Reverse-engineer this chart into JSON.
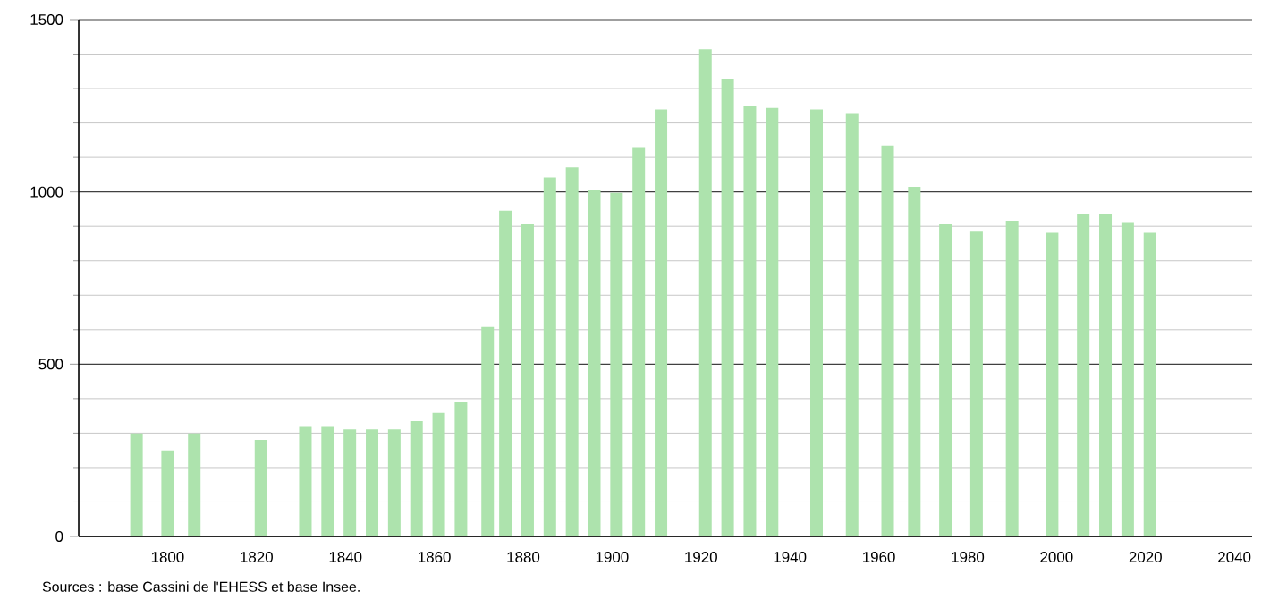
{
  "chart_data": {
    "type": "bar",
    "color": "#ade3ad",
    "x": [
      1793,
      1800,
      1806,
      1821,
      1831,
      1836,
      1841,
      1846,
      1851,
      1856,
      1861,
      1866,
      1872,
      1876,
      1881,
      1886,
      1891,
      1896,
      1901,
      1906,
      1911,
      1921,
      1926,
      1931,
      1936,
      1946,
      1954,
      1962,
      1968,
      1975,
      1982,
      1990,
      1999,
      2006,
      2011,
      2016,
      2021
    ],
    "values": [
      299,
      250,
      299,
      280,
      318,
      318,
      311,
      311,
      311,
      335,
      359,
      389,
      608,
      945,
      907,
      1042,
      1071,
      1006,
      997,
      1130,
      1239,
      1414,
      1329,
      1248,
      1244,
      1239,
      1229,
      1135,
      1015,
      906,
      887,
      916,
      881,
      937,
      937,
      912,
      881
    ],
    "xlim": [
      1780,
      2044
    ],
    "xticks": [
      1800,
      1820,
      1840,
      1860,
      1880,
      1900,
      1920,
      1940,
      1960,
      1980,
      2000,
      2020,
      2040
    ],
    "ylim": [
      0,
      1500
    ],
    "yticks": [
      0,
      {
        "value": 100,
        "label": null
      },
      {
        "value": 200,
        "label": null
      },
      {
        "value": 300,
        "label": null
      },
      {
        "value": 400,
        "label": null
      },
      500,
      {
        "value": 600,
        "label": null
      },
      {
        "value": 700,
        "label": null
      },
      {
        "value": 800,
        "label": null
      },
      {
        "value": 900,
        "label": null
      },
      1000,
      {
        "value": 1100,
        "label": null
      },
      {
        "value": 1200,
        "label": null
      },
      {
        "value": 1300,
        "label": null
      },
      {
        "value": 1400,
        "label": null
      },
      1500
    ],
    "grid": "y",
    "annotations": [
      "Sources : base Cassini de l'EHESS et base Insee."
    ]
  }
}
